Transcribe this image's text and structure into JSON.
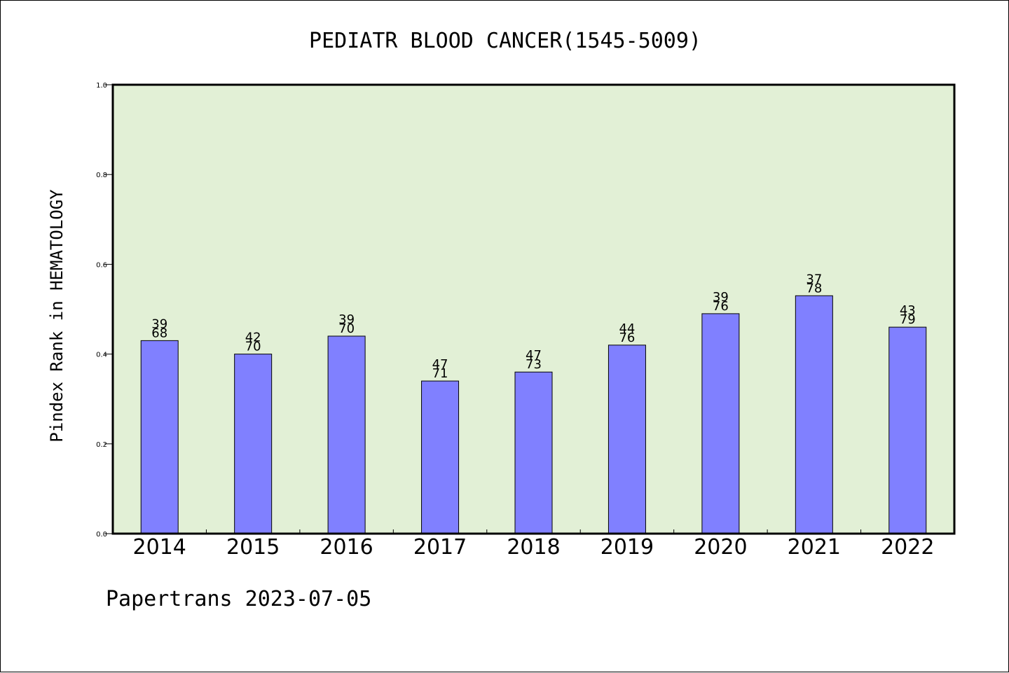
{
  "chart_data": {
    "type": "bar",
    "title": "PEDIATR BLOOD CANCER(1545-5009)",
    "ylabel": "Pindex Rank in HEMATOLOGY",
    "xlabel": "",
    "ylim": [
      0,
      1.0
    ],
    "yticks": [
      "0.0",
      "0.2",
      "0.4",
      "0.6",
      "0.8",
      "1.0"
    ],
    "categories": [
      "2014",
      "2015",
      "2016",
      "2017",
      "2018",
      "2019",
      "2020",
      "2021",
      "2022"
    ],
    "values": [
      0.43,
      0.4,
      0.44,
      0.34,
      0.36,
      0.42,
      0.49,
      0.53,
      0.46
    ],
    "label_top": [
      "39",
      "42",
      "39",
      "47",
      "47",
      "44",
      "39",
      "37",
      "43"
    ],
    "label_bottom": [
      "68",
      "70",
      "70",
      "71",
      "73",
      "76",
      "76",
      "78",
      "79"
    ],
    "bar_color": "#8080ff",
    "plot_background": "#e2f0d6",
    "grid": false,
    "legend": "none"
  },
  "footer": "Papertrans 2023-07-05"
}
